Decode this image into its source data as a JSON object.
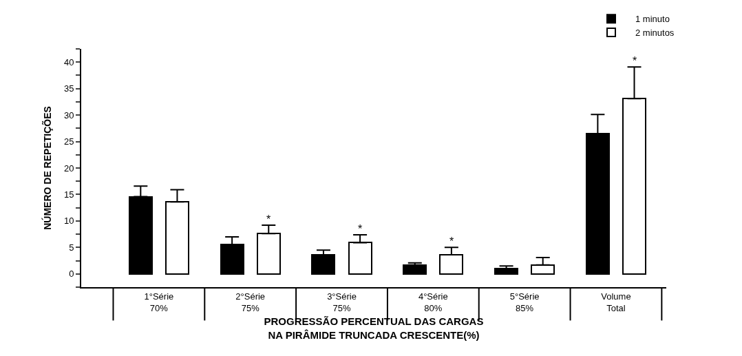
{
  "chart_data": {
    "type": "bar",
    "xlabel": "PROGRESSÃO PERCENTUAL DAS CARGAS\nNA PIRÂMIDE TRUNCADA CRESCENTE(%)",
    "ylabel": "NÚMERO DE REPETIÇÕES",
    "categories": [
      "1°Série\n70%",
      "2°Série\n75%",
      "3°Série\n75%",
      "4°Série\n80%",
      "5°Série\n85%",
      "Volume\nTotal"
    ],
    "series": [
      {
        "name": "1 minuto",
        "color": "#000000",
        "values": [
          14.6,
          5.5,
          3.6,
          1.7,
          1.0,
          26.5
        ],
        "errors": [
          [
            14.6,
            16.6
          ],
          [
            5.5,
            7.0
          ],
          [
            3.6,
            4.5
          ],
          [
            1.7,
            2.1
          ],
          [
            1.0,
            1.5
          ],
          [
            26.5,
            30.1
          ]
        ]
      },
      {
        "name": "2 minutos",
        "color": "#ffffff",
        "values": [
          13.6,
          7.6,
          5.9,
          3.6,
          1.7,
          33.1
        ],
        "errors": [
          [
            13.6,
            15.9
          ],
          [
            7.6,
            9.2
          ],
          [
            5.9,
            7.4
          ],
          [
            3.6,
            5.0
          ],
          [
            1.7,
            3.1
          ],
          [
            33.1,
            39.1
          ]
        ],
        "value_labels": [
          null,
          "*",
          "*",
          "*",
          null,
          "*"
        ]
      }
    ],
    "ylim": [
      -2.5,
      42.5
    ],
    "yticks": [
      {
        "value": -2.5,
        "label": null
      },
      0,
      {
        "value": 2.5,
        "label": null
      },
      5,
      {
        "value": 7.5,
        "label": null
      },
      10,
      {
        "value": 12.5,
        "label": null
      },
      15,
      {
        "value": 17.5,
        "label": null
      },
      20,
      {
        "value": 22.5,
        "label": null
      },
      25,
      {
        "value": 27.5,
        "label": null
      },
      30,
      {
        "value": 32.5,
        "label": null
      },
      35,
      {
        "value": 37.5,
        "label": null
      },
      40,
      {
        "value": 42.5,
        "label": null
      }
    ],
    "legend": "top right"
  }
}
